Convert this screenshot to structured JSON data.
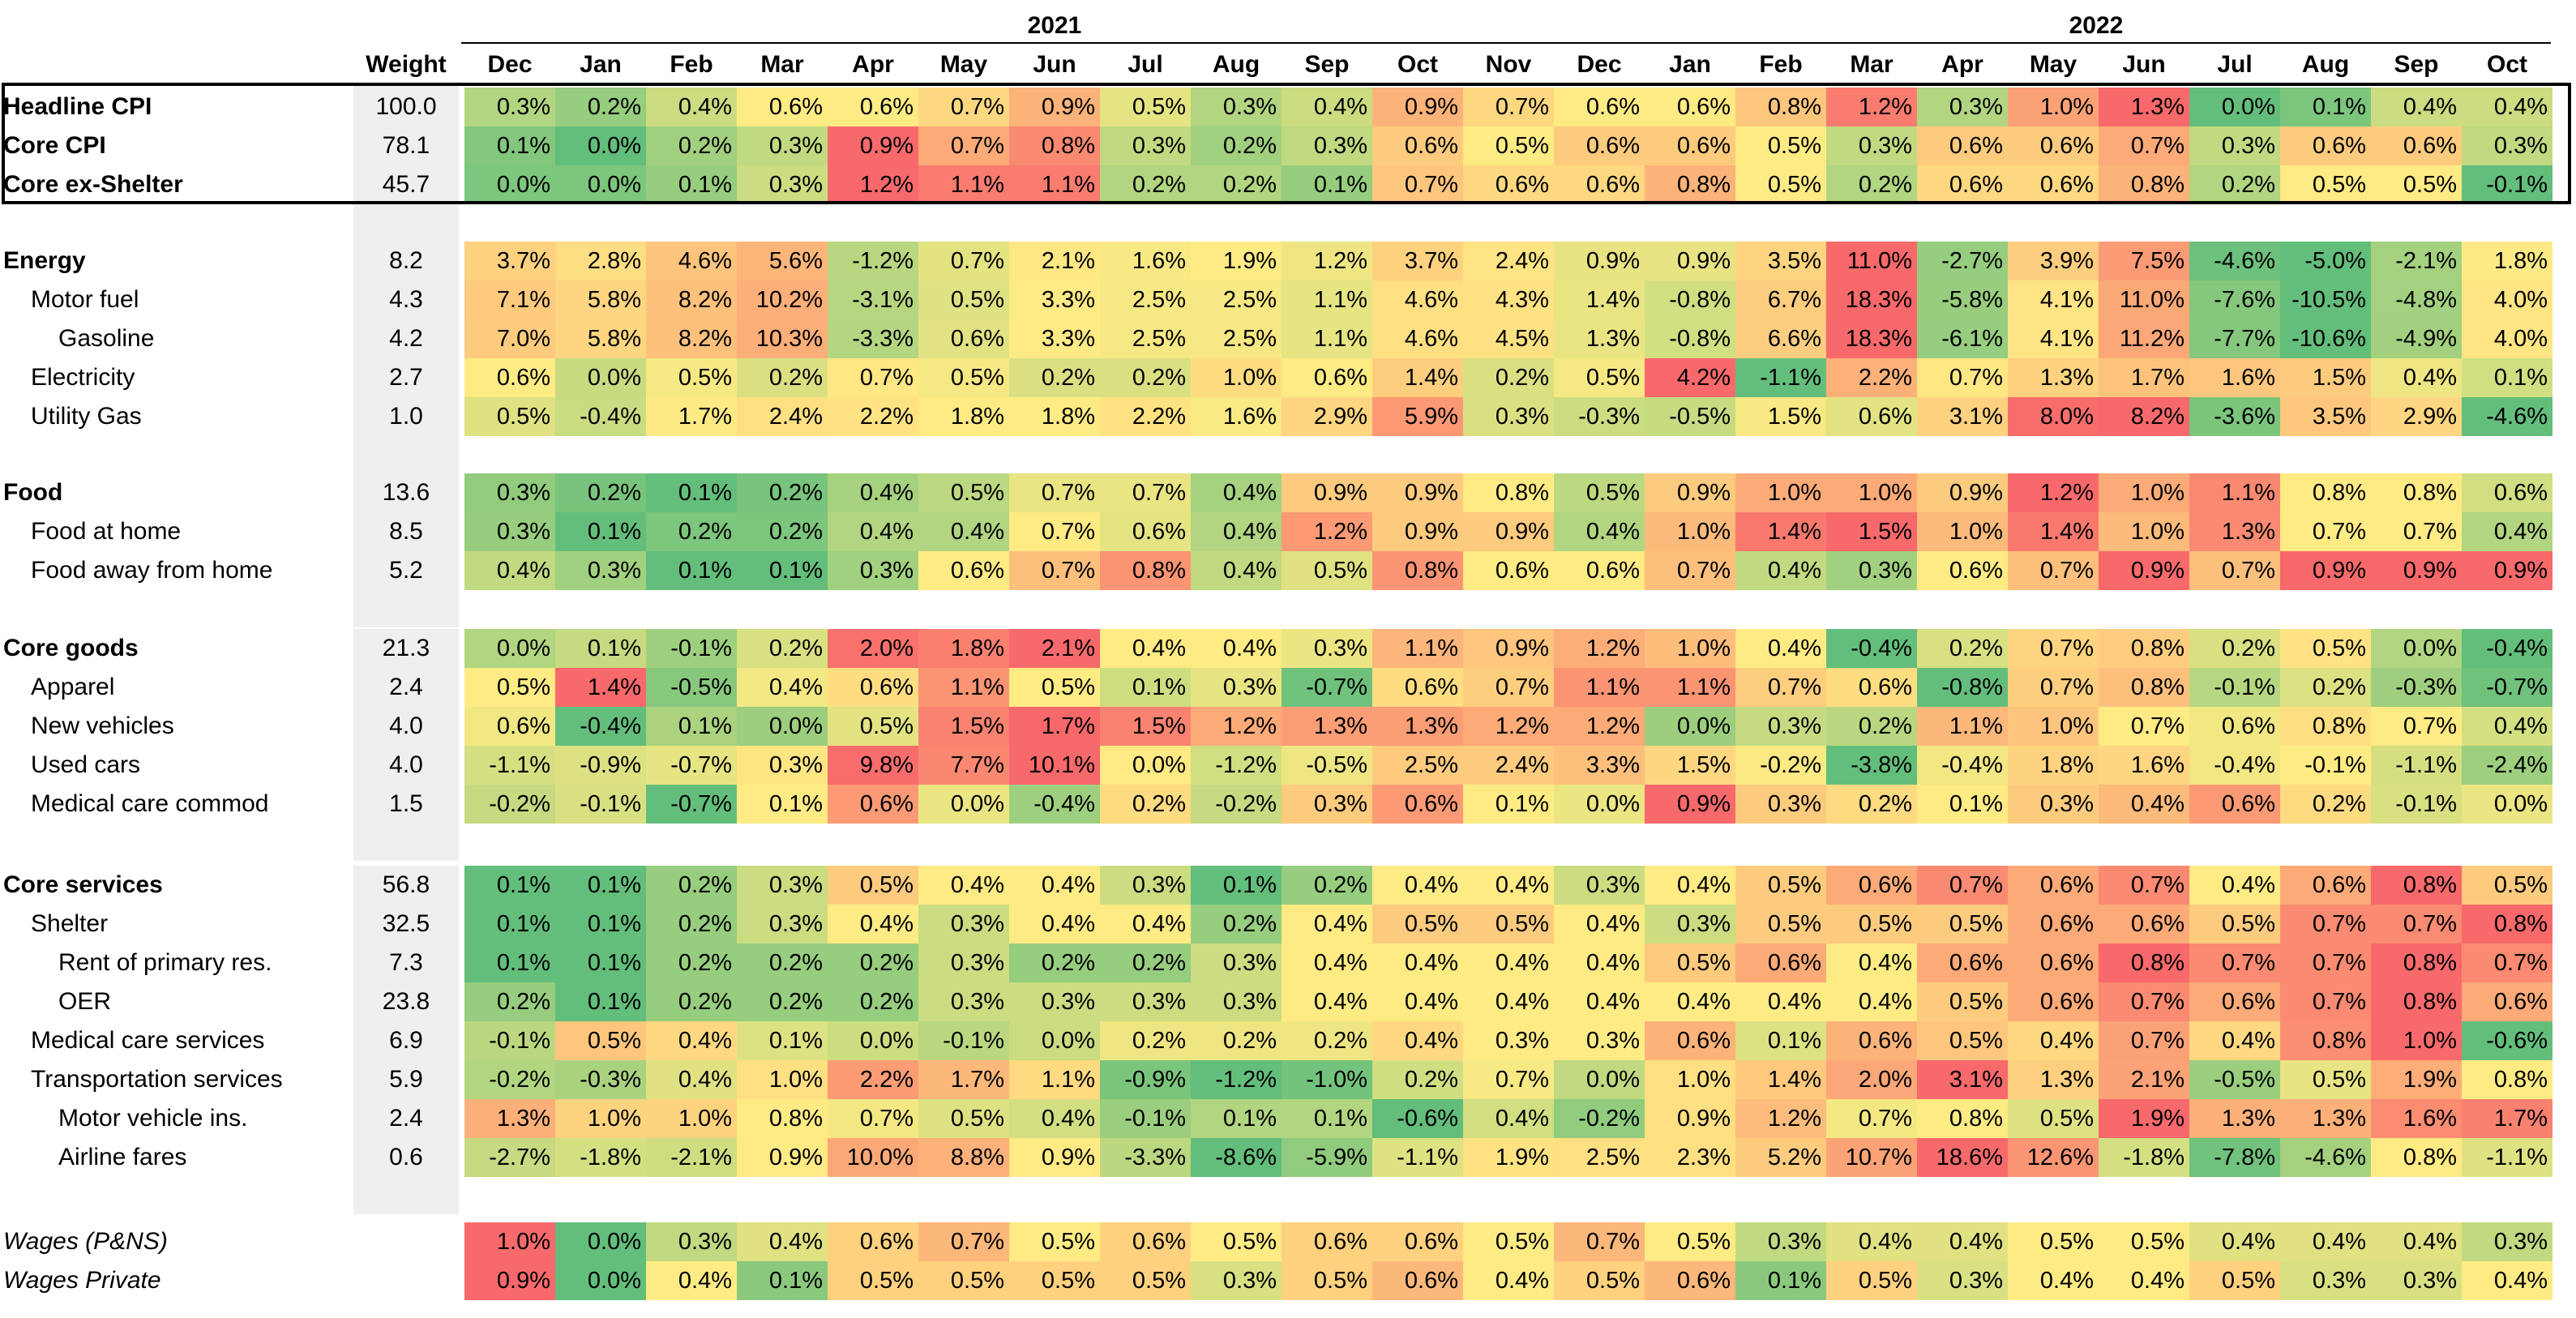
{
  "chart_data": {
    "type": "heatmap",
    "title": "",
    "weight_header": "Weight",
    "years": [
      {
        "label": "2021",
        "start": 0,
        "span": 13
      },
      {
        "label": "2022",
        "start": 13,
        "span": 10
      }
    ],
    "columns": [
      "Dec",
      "Jan",
      "Feb",
      "Mar",
      "Apr",
      "May",
      "Jun",
      "Jul",
      "Aug",
      "Sep",
      "Oct",
      "Nov",
      "Dec",
      "Jan",
      "Feb",
      "Mar",
      "Apr",
      "May",
      "Jun",
      "Jul",
      "Aug",
      "Sep",
      "Oct"
    ],
    "groups": [
      {
        "name": "top",
        "rows": [
          {
            "label": "Headline CPI",
            "weight": "100.0",
            "bold": true,
            "indent": 0,
            "values": [
              0.3,
              0.2,
              0.4,
              0.6,
              0.6,
              0.7,
              0.9,
              0.5,
              0.3,
              0.4,
              0.9,
              0.7,
              0.6,
              0.6,
              0.8,
              1.2,
              0.3,
              1.0,
              1.3,
              0.0,
              0.1,
              0.4,
              0.4
            ]
          },
          {
            "label": "Core CPI",
            "weight": "78.1",
            "bold": true,
            "indent": 0,
            "values": [
              0.1,
              0.0,
              0.2,
              0.3,
              0.9,
              0.7,
              0.8,
              0.3,
              0.2,
              0.3,
              0.6,
              0.5,
              0.6,
              0.6,
              0.5,
              0.3,
              0.6,
              0.6,
              0.7,
              0.3,
              0.6,
              0.6,
              0.3
            ]
          },
          {
            "label": "Core ex-Shelter",
            "weight": "45.7",
            "bold": true,
            "indent": 0,
            "values": [
              0.0,
              0.0,
              0.1,
              0.3,
              1.2,
              1.1,
              1.1,
              0.2,
              0.2,
              0.1,
              0.7,
              0.6,
              0.6,
              0.8,
              0.5,
              0.2,
              0.6,
              0.6,
              0.8,
              0.2,
              0.5,
              0.5,
              -0.1
            ]
          }
        ]
      },
      {
        "name": "energy",
        "rows": [
          {
            "label": "Energy",
            "weight": "8.2",
            "bold": true,
            "indent": 0,
            "values": [
              3.7,
              2.8,
              4.6,
              5.6,
              -1.2,
              0.7,
              2.1,
              1.6,
              1.9,
              1.2,
              3.7,
              2.4,
              0.9,
              0.9,
              3.5,
              11.0,
              -2.7,
              3.9,
              7.5,
              -4.6,
              -5.0,
              -2.1,
              1.8
            ]
          },
          {
            "label": "Motor fuel",
            "weight": "4.3",
            "bold": false,
            "indent": 1,
            "values": [
              7.1,
              5.8,
              8.2,
              10.2,
              -3.1,
              0.5,
              3.3,
              2.5,
              2.5,
              1.1,
              4.6,
              4.3,
              1.4,
              -0.8,
              6.7,
              18.3,
              -5.8,
              4.1,
              11.0,
              -7.6,
              -10.5,
              -4.8,
              4.0
            ]
          },
          {
            "label": "Gasoline",
            "weight": "4.2",
            "bold": false,
            "indent": 2,
            "values": [
              7.0,
              5.8,
              8.2,
              10.3,
              -3.3,
              0.6,
              3.3,
              2.5,
              2.5,
              1.1,
              4.6,
              4.5,
              1.3,
              -0.8,
              6.6,
              18.3,
              -6.1,
              4.1,
              11.2,
              -7.7,
              -10.6,
              -4.9,
              4.0
            ]
          },
          {
            "label": "Electricity",
            "weight": "2.7",
            "bold": false,
            "indent": 1,
            "values": [
              0.6,
              0.0,
              0.5,
              0.2,
              0.7,
              0.5,
              0.2,
              0.2,
              1.0,
              0.6,
              1.4,
              0.2,
              0.5,
              4.2,
              -1.1,
              2.2,
              0.7,
              1.3,
              1.7,
              1.6,
              1.5,
              0.4,
              0.1
            ]
          },
          {
            "label": "Utility Gas",
            "weight": "1.0",
            "bold": false,
            "indent": 1,
            "values": [
              0.5,
              -0.4,
              1.7,
              2.4,
              2.2,
              1.8,
              1.8,
              2.2,
              1.6,
              2.9,
              5.9,
              0.3,
              -0.3,
              -0.5,
              1.5,
              0.6,
              3.1,
              8.0,
              8.2,
              -3.6,
              3.5,
              2.9,
              -4.6
            ]
          }
        ]
      },
      {
        "name": "food",
        "rows": [
          {
            "label": "Food",
            "weight": "13.6",
            "bold": true,
            "indent": 0,
            "values": [
              0.3,
              0.2,
              0.1,
              0.2,
              0.4,
              0.5,
              0.7,
              0.7,
              0.4,
              0.9,
              0.9,
              0.8,
              0.5,
              0.9,
              1.0,
              1.0,
              0.9,
              1.2,
              1.0,
              1.1,
              0.8,
              0.8,
              0.6
            ]
          },
          {
            "label": "Food at home",
            "weight": "8.5",
            "bold": false,
            "indent": 1,
            "values": [
              0.3,
              0.1,
              0.2,
              0.2,
              0.4,
              0.4,
              0.7,
              0.6,
              0.4,
              1.2,
              0.9,
              0.9,
              0.4,
              1.0,
              1.4,
              1.5,
              1.0,
              1.4,
              1.0,
              1.3,
              0.7,
              0.7,
              0.4
            ]
          },
          {
            "label": "Food away from home",
            "weight": "5.2",
            "bold": false,
            "indent": 1,
            "values": [
              0.4,
              0.3,
              0.1,
              0.1,
              0.3,
              0.6,
              0.7,
              0.8,
              0.4,
              0.5,
              0.8,
              0.6,
              0.6,
              0.7,
              0.4,
              0.3,
              0.6,
              0.7,
              0.9,
              0.7,
              0.9,
              0.9,
              0.9
            ]
          }
        ]
      },
      {
        "name": "coregoods",
        "rows": [
          {
            "label": "Core goods",
            "weight": "21.3",
            "bold": true,
            "indent": 0,
            "values": [
              0.0,
              0.1,
              -0.1,
              0.2,
              2.0,
              1.8,
              2.1,
              0.4,
              0.4,
              0.3,
              1.1,
              0.9,
              1.2,
              1.0,
              0.4,
              -0.4,
              0.2,
              0.7,
              0.8,
              0.2,
              0.5,
              0.0,
              -0.4
            ]
          },
          {
            "label": "Apparel",
            "weight": "2.4",
            "bold": false,
            "indent": 1,
            "values": [
              0.5,
              1.4,
              -0.5,
              0.4,
              0.6,
              1.1,
              0.5,
              0.1,
              0.3,
              -0.7,
              0.6,
              0.7,
              1.1,
              1.1,
              0.7,
              0.6,
              -0.8,
              0.7,
              0.8,
              -0.1,
              0.2,
              -0.3,
              -0.7
            ]
          },
          {
            "label": "New vehicles",
            "weight": "4.0",
            "bold": false,
            "indent": 1,
            "values": [
              0.6,
              -0.4,
              0.1,
              0.0,
              0.5,
              1.5,
              1.7,
              1.5,
              1.2,
              1.3,
              1.3,
              1.2,
              1.2,
              0.0,
              0.3,
              0.2,
              1.1,
              1.0,
              0.7,
              0.6,
              0.8,
              0.7,
              0.4
            ]
          },
          {
            "label": "Used cars",
            "weight": "4.0",
            "bold": false,
            "indent": 1,
            "values": [
              -1.1,
              -0.9,
              -0.7,
              0.3,
              9.8,
              7.7,
              10.1,
              0.0,
              -1.2,
              -0.5,
              2.5,
              2.4,
              3.3,
              1.5,
              -0.2,
              -3.8,
              -0.4,
              1.8,
              1.6,
              -0.4,
              -0.1,
              -1.1,
              -2.4
            ]
          },
          {
            "label": "Medical care commod",
            "weight": "1.5",
            "bold": false,
            "indent": 1,
            "values": [
              -0.2,
              -0.1,
              -0.7,
              0.1,
              0.6,
              0.0,
              -0.4,
              0.2,
              -0.2,
              0.3,
              0.6,
              0.1,
              0.0,
              0.9,
              0.3,
              0.2,
              0.1,
              0.3,
              0.4,
              0.6,
              0.2,
              -0.1,
              0.0
            ]
          }
        ]
      },
      {
        "name": "coreservices",
        "rows": [
          {
            "label": "Core services",
            "weight": "56.8",
            "bold": true,
            "indent": 0,
            "values": [
              0.1,
              0.1,
              0.2,
              0.3,
              0.5,
              0.4,
              0.4,
              0.3,
              0.1,
              0.2,
              0.4,
              0.4,
              0.3,
              0.4,
              0.5,
              0.6,
              0.7,
              0.6,
              0.7,
              0.4,
              0.6,
              0.8,
              0.5
            ]
          },
          {
            "label": "Shelter",
            "weight": "32.5",
            "bold": false,
            "indent": 1,
            "values": [
              0.1,
              0.1,
              0.2,
              0.3,
              0.4,
              0.3,
              0.4,
              0.4,
              0.2,
              0.4,
              0.5,
              0.5,
              0.4,
              0.3,
              0.5,
              0.5,
              0.5,
              0.6,
              0.6,
              0.5,
              0.7,
              0.7,
              0.8
            ]
          },
          {
            "label": "Rent of primary res.",
            "weight": "7.3",
            "bold": false,
            "indent": 2,
            "values": [
              0.1,
              0.1,
              0.2,
              0.2,
              0.2,
              0.3,
              0.2,
              0.2,
              0.3,
              0.4,
              0.4,
              0.4,
              0.4,
              0.5,
              0.6,
              0.4,
              0.6,
              0.6,
              0.8,
              0.7,
              0.7,
              0.8,
              0.7
            ]
          },
          {
            "label": "OER",
            "weight": "23.8",
            "bold": false,
            "indent": 2,
            "values": [
              0.2,
              0.1,
              0.2,
              0.2,
              0.2,
              0.3,
              0.3,
              0.3,
              0.3,
              0.4,
              0.4,
              0.4,
              0.4,
              0.4,
              0.4,
              0.4,
              0.5,
              0.6,
              0.7,
              0.6,
              0.7,
              0.8,
              0.6
            ]
          },
          {
            "label": "Medical care services",
            "weight": "6.9",
            "bold": false,
            "indent": 1,
            "values": [
              -0.1,
              0.5,
              0.4,
              0.1,
              0.0,
              -0.1,
              0.0,
              0.2,
              0.2,
              0.2,
              0.4,
              0.3,
              0.3,
              0.6,
              0.1,
              0.6,
              0.5,
              0.4,
              0.7,
              0.4,
              0.8,
              1.0,
              -0.6
            ]
          },
          {
            "label": "Transportation services",
            "weight": "5.9",
            "bold": false,
            "indent": 1,
            "values": [
              -0.2,
              -0.3,
              0.4,
              1.0,
              2.2,
              1.7,
              1.1,
              -0.9,
              -1.2,
              -1.0,
              0.2,
              0.7,
              0.0,
              1.0,
              1.4,
              2.0,
              3.1,
              1.3,
              2.1,
              -0.5,
              0.5,
              1.9,
              0.8
            ]
          },
          {
            "label": "Motor vehicle ins.",
            "weight": "2.4",
            "bold": false,
            "indent": 2,
            "values": [
              1.3,
              1.0,
              1.0,
              0.8,
              0.7,
              0.5,
              0.4,
              -0.1,
              0.1,
              0.1,
              -0.6,
              0.4,
              -0.2,
              0.9,
              1.2,
              0.7,
              0.8,
              0.5,
              1.9,
              1.3,
              1.3,
              1.6,
              1.7
            ]
          },
          {
            "label": "Airline fares",
            "weight": "0.6",
            "bold": false,
            "indent": 2,
            "values": [
              -2.7,
              -1.8,
              -2.1,
              0.9,
              10.0,
              8.8,
              0.9,
              -3.3,
              -8.6,
              -5.9,
              -1.1,
              1.9,
              2.5,
              2.3,
              5.2,
              10.7,
              18.6,
              12.6,
              -1.8,
              -7.8,
              -4.6,
              0.8,
              -1.1
            ]
          }
        ]
      },
      {
        "name": "wages",
        "rows": [
          {
            "label": "Wages (P&NS)",
            "weight": "",
            "italic": true,
            "indent": 0,
            "values": [
              1.0,
              0.0,
              0.3,
              0.4,
              0.6,
              0.7,
              0.5,
              0.6,
              0.5,
              0.6,
              0.6,
              0.5,
              0.7,
              0.5,
              0.3,
              0.4,
              0.4,
              0.5,
              0.5,
              0.4,
              0.4,
              0.4,
              0.3
            ]
          },
          {
            "label": "Wages Private",
            "weight": "",
            "italic": true,
            "indent": 0,
            "values": [
              0.9,
              0.0,
              0.4,
              0.1,
              0.5,
              0.5,
              0.5,
              0.5,
              0.3,
              0.5,
              0.6,
              0.4,
              0.5,
              0.6,
              0.1,
              0.5,
              0.3,
              0.4,
              0.4,
              0.5,
              0.3,
              0.3,
              0.4
            ]
          }
        ]
      }
    ],
    "colors": {
      "low": "#63be7b",
      "mid": "#ffeb84",
      "high": "#f8696b"
    }
  }
}
